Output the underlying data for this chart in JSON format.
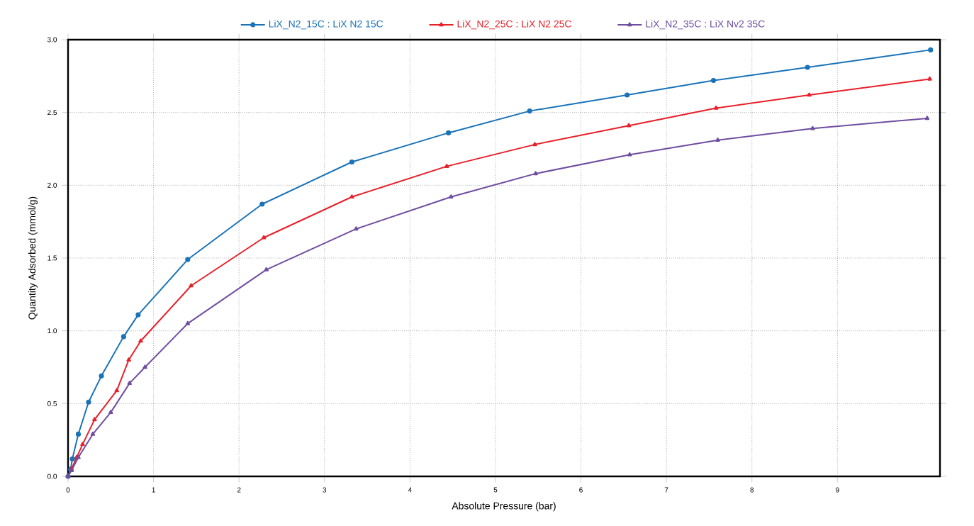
{
  "chart_data": {
    "type": "line",
    "xlabel": "Absolute Pressure (bar)",
    "ylabel": "Quantity Adsorbed (mmol/g)",
    "xlim": [
      0,
      10.2
    ],
    "ylim": [
      0,
      3.0
    ],
    "xticks": [
      0,
      1,
      2,
      3,
      4,
      5,
      6,
      7,
      8,
      9
    ],
    "yticks": [
      {
        "value": 0,
        "label": "0.0"
      },
      {
        "value": 0.5,
        "label": "0.5"
      },
      {
        "value": 1,
        "label": "1.0"
      },
      {
        "value": 1.5,
        "label": "1.5"
      },
      {
        "value": 2,
        "label": "2.0"
      },
      {
        "value": 2.5,
        "label": "2.5"
      },
      {
        "value": 3,
        "label": "3.0"
      }
    ],
    "grid": true,
    "legend": "top",
    "line_style": "solid",
    "series": [
      {
        "name": "LiX_N2_15C : LiX N2 15C",
        "color": "#1a73b8",
        "marker": "circle",
        "x": [
          0,
          0.03,
          0.05,
          0.12,
          0.24,
          0.39,
          0.65,
          0.82,
          1.4,
          2.27,
          3.32,
          4.45,
          5.4,
          6.54,
          7.55,
          8.65,
          10.09
        ],
        "values": [
          0,
          0.05,
          0.12,
          0.29,
          0.51,
          0.69,
          0.96,
          1.11,
          1.49,
          1.87,
          2.16,
          2.36,
          2.51,
          2.62,
          2.72,
          2.81,
          2.93
        ]
      },
      {
        "name": "LiX_N2_25C : LiX N2 25C",
        "color": "#e8202a",
        "marker": "triangle",
        "x": [
          0,
          0.04,
          0.1,
          0.17,
          0.31,
          0.57,
          0.71,
          0.85,
          1.44,
          2.29,
          3.32,
          4.43,
          5.46,
          6.56,
          7.58,
          8.67,
          10.08
        ],
        "values": [
          0,
          0.05,
          0.13,
          0.22,
          0.39,
          0.59,
          0.8,
          0.93,
          1.31,
          1.64,
          1.92,
          2.13,
          2.28,
          2.41,
          2.53,
          2.62,
          2.73
        ]
      },
      {
        "name": "LiX_N2_35C : LiX Nv2 35C",
        "color": "#6f4ea0",
        "marker": "triangle",
        "x": [
          0,
          0.04,
          0.12,
          0.29,
          0.5,
          0.72,
          0.9,
          1.4,
          2.32,
          3.37,
          4.48,
          5.47,
          6.57,
          7.6,
          8.71,
          10.05
        ],
        "values": [
          0,
          0.04,
          0.13,
          0.29,
          0.44,
          0.64,
          0.75,
          1.05,
          1.42,
          1.7,
          1.92,
          2.08,
          2.21,
          2.31,
          2.39,
          2.46
        ]
      }
    ]
  }
}
